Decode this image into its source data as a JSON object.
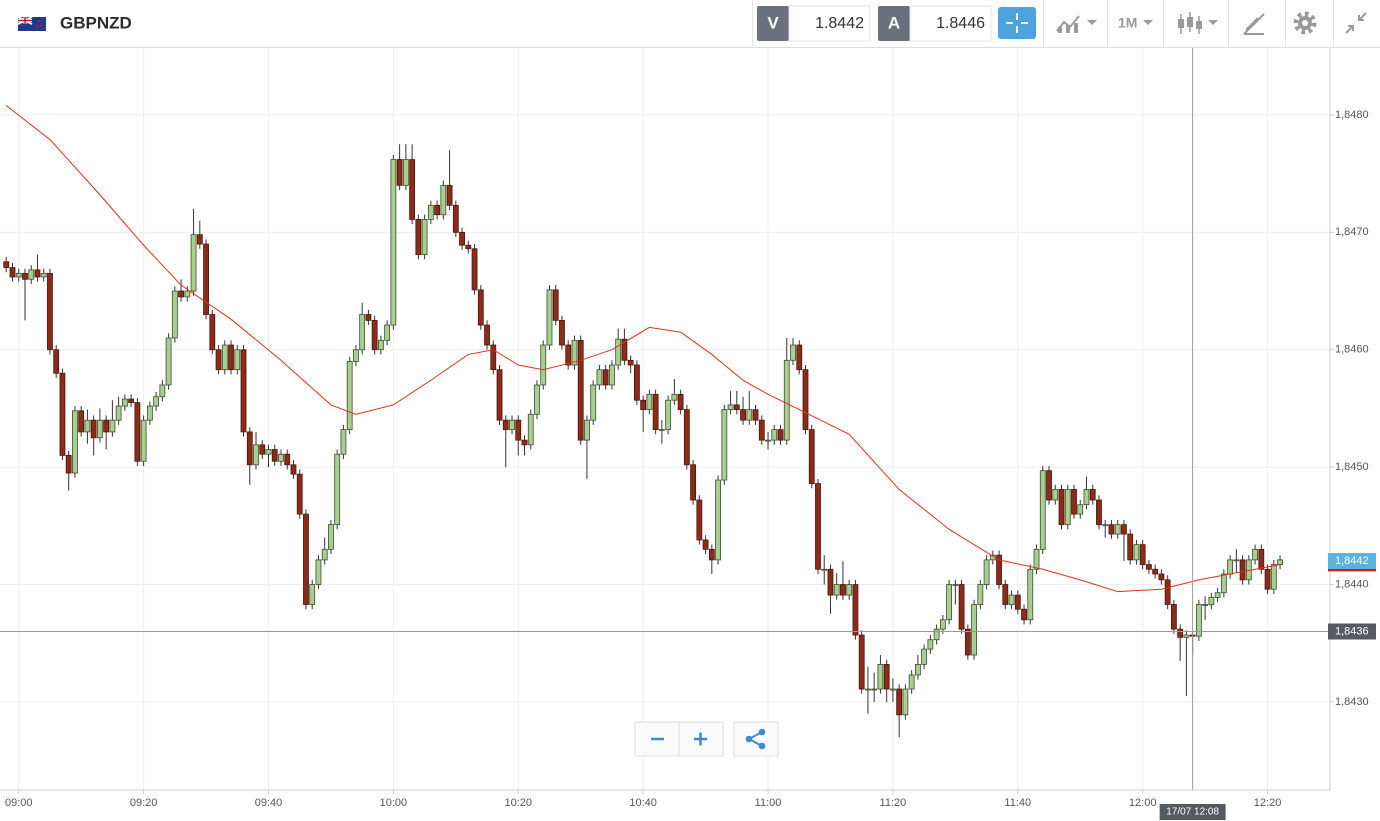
{
  "header": {
    "symbol": "GBPNZD",
    "bid_label": "V",
    "bid": 1.8442,
    "ask_label": "A",
    "ask": 1.8446,
    "timeframe": "1M"
  },
  "chart_data": {
    "type": "candlestick",
    "x": [
      "08:58",
      "08:59",
      "09:00",
      "09:01",
      "09:02",
      "09:03",
      "09:04",
      "09:05",
      "09:06",
      "09:07",
      "09:08",
      "09:09",
      "09:10",
      "09:11",
      "09:12",
      "09:13",
      "09:14",
      "09:15",
      "09:16",
      "09:17",
      "09:18",
      "09:19",
      "09:20",
      "09:21",
      "09:22",
      "09:23",
      "09:24",
      "09:25",
      "09:26",
      "09:27",
      "09:28",
      "09:29",
      "09:30",
      "09:31",
      "09:32",
      "09:33",
      "09:34",
      "09:35",
      "09:36",
      "09:37",
      "09:38",
      "09:39",
      "09:40",
      "09:41",
      "09:42",
      "09:43",
      "09:44",
      "09:45",
      "09:46",
      "09:47",
      "09:48",
      "09:49",
      "09:50",
      "09:51",
      "09:52",
      "09:53",
      "09:54",
      "09:55",
      "09:56",
      "09:57",
      "09:58",
      "09:59",
      "10:00",
      "10:01",
      "10:02",
      "10:03",
      "10:04",
      "10:05",
      "10:06",
      "10:07",
      "10:08",
      "10:09",
      "10:10",
      "10:11",
      "10:12",
      "10:13",
      "10:14",
      "10:15",
      "10:16",
      "10:17",
      "10:18",
      "10:19",
      "10:20",
      "10:21",
      "10:22",
      "10:23",
      "10:24",
      "10:25",
      "10:26",
      "10:27",
      "10:28",
      "10:29",
      "10:30",
      "10:31",
      "10:32",
      "10:33",
      "10:34",
      "10:35",
      "10:36",
      "10:37",
      "10:38",
      "10:39",
      "10:40",
      "10:41",
      "10:42",
      "10:43",
      "10:44",
      "10:45",
      "10:46",
      "10:47",
      "10:48",
      "10:49",
      "10:50",
      "10:51",
      "10:52",
      "10:53",
      "10:54",
      "10:55",
      "10:56",
      "10:57",
      "10:58",
      "10:59",
      "11:00",
      "11:01",
      "11:02",
      "11:03",
      "11:04",
      "11:05",
      "11:06",
      "11:07",
      "11:08",
      "11:09",
      "11:10",
      "11:11",
      "11:12",
      "11:13",
      "11:14",
      "11:15",
      "11:16",
      "11:17",
      "11:18",
      "11:19",
      "11:20",
      "11:21",
      "11:22",
      "11:23",
      "11:24",
      "11:25",
      "11:26",
      "11:27",
      "11:28",
      "11:29",
      "11:30",
      "11:31",
      "11:32",
      "11:33",
      "11:34",
      "11:35",
      "11:36",
      "11:37",
      "11:38",
      "11:39",
      "11:40",
      "11:41",
      "11:42",
      "11:43",
      "11:44",
      "11:45",
      "11:46",
      "11:47",
      "11:48",
      "11:49",
      "11:50",
      "11:51",
      "11:52",
      "11:53",
      "11:54",
      "11:55",
      "11:56",
      "11:57",
      "11:58",
      "11:59",
      "12:00",
      "12:01",
      "12:02",
      "12:03",
      "12:04",
      "12:05",
      "12:06",
      "12:07",
      "12:08",
      "12:09",
      "12:10",
      "12:11",
      "12:12",
      "12:13",
      "12:14",
      "12:15",
      "12:16",
      "12:17",
      "12:18",
      "12:19",
      "12:20",
      "12:21",
      "12:22"
    ],
    "open": [
      1.84675,
      1.8467,
      1.84662,
      1.84665,
      1.8466,
      1.84668,
      1.84662,
      1.84665,
      1.846,
      1.8458,
      1.8451,
      1.84495,
      1.84548,
      1.8453,
      1.8454,
      1.84525,
      1.8454,
      1.8453,
      1.8454,
      1.84552,
      1.84558,
      1.84555,
      1.84505,
      1.8454,
      1.84552,
      1.8456,
      1.8457,
      1.8461,
      1.8465,
      1.84645,
      1.8465,
      1.84698,
      1.8469,
      1.8463,
      1.846,
      1.84583,
      1.84604,
      1.84583,
      1.846,
      1.8453,
      1.84502,
      1.84519,
      1.84511,
      1.84515,
      1.84505,
      1.84511,
      1.84502,
      1.84494,
      1.8446,
      1.84383,
      1.844,
      1.84421,
      1.8443,
      1.84451,
      1.84511,
      1.84532,
      1.8459,
      1.846,
      1.8463,
      1.84625,
      1.846,
      1.84608,
      1.84621,
      1.84762,
      1.8474,
      1.84762,
      1.84711,
      1.84681,
      1.84711,
      1.84723,
      1.84715,
      1.8474,
      1.84723,
      1.847,
      1.84689,
      1.84686,
      1.84651,
      1.84621,
      1.84604,
      1.84583,
      1.8454,
      1.84532,
      1.8454,
      1.84523,
      1.84519,
      1.84545,
      1.8457,
      1.84604,
      1.84651,
      1.84625,
      1.84604,
      1.84587,
      1.84608,
      1.84523,
      1.8454,
      1.8457,
      1.84583,
      1.8457,
      1.84587,
      1.84609,
      1.84591,
      1.84587,
      1.84557,
      1.84549,
      1.84562,
      1.84532,
      1.84532,
      1.84557,
      1.84562,
      1.84549,
      1.84502,
      1.84472,
      1.84438,
      1.8443,
      1.84421,
      1.84489,
      1.84549,
      1.84553,
      1.84549,
      1.8454,
      1.84549,
      1.8454,
      1.84523,
      1.84523,
      1.84532,
      1.84523,
      1.84591,
      1.84604,
      1.84583,
      1.84532,
      1.84486,
      1.84413,
      1.84413,
      1.84391,
      1.844,
      1.84391,
      1.844,
      1.84357,
      1.84311,
      1.84311,
      1.84311,
      1.84332,
      1.84311,
      1.84311,
      1.84289,
      1.84311,
      1.84323,
      1.84332,
      1.84345,
      1.84353,
      1.84362,
      1.8437,
      1.844,
      1.844,
      1.84362,
      1.8434,
      1.84383,
      1.844,
      1.84421,
      1.84425,
      1.844,
      1.84383,
      1.84391,
      1.84379,
      1.8437,
      1.84413,
      1.8443,
      1.84497,
      1.84472,
      1.84481,
      1.84451,
      1.84481,
      1.8446,
      1.84468,
      1.84481,
      1.84472,
      1.84451,
      1.84451,
      1.84443,
      1.84451,
      1.84443,
      1.84421,
      1.84434,
      1.84417,
      1.84413,
      1.84409,
      1.84404,
      1.84383,
      1.84362,
      1.84355,
      1.84357,
      1.84356,
      1.84383,
      1.84383,
      1.84389,
      1.84393,
      1.84409,
      1.84421,
      1.84421,
      1.84404,
      1.84421,
      1.8443,
      1.84413,
      1.84396,
      1.84417
    ],
    "high": [
      1.84679,
      1.84674,
      1.84669,
      1.84669,
      1.84672,
      1.84681,
      1.84669,
      1.84669,
      1.84604,
      1.84584,
      1.84514,
      1.84552,
      1.84552,
      1.84549,
      1.84544,
      1.8455,
      1.84544,
      1.84557,
      1.8456,
      1.84562,
      1.84562,
      1.84559,
      1.84544,
      1.84556,
      1.84564,
      1.84574,
      1.84614,
      1.84654,
      1.8466,
      1.84654,
      1.8472,
      1.8471,
      1.84694,
      1.84634,
      1.84604,
      1.84608,
      1.84608,
      1.84604,
      1.84604,
      1.84534,
      1.8453,
      1.84523,
      1.84519,
      1.84519,
      1.84515,
      1.84515,
      1.84506,
      1.84498,
      1.84464,
      1.84404,
      1.84425,
      1.8444,
      1.84455,
      1.84515,
      1.84536,
      1.84594,
      1.84604,
      1.8464,
      1.84634,
      1.84629,
      1.84612,
      1.84625,
      1.84766,
      1.84775,
      1.84775,
      1.84775,
      1.84715,
      1.84715,
      1.84727,
      1.84727,
      1.84744,
      1.8477,
      1.84727,
      1.84704,
      1.84693,
      1.8469,
      1.84655,
      1.84625,
      1.84608,
      1.84587,
      1.84544,
      1.84544,
      1.84544,
      1.84527,
      1.84549,
      1.84574,
      1.84608,
      1.84655,
      1.84655,
      1.84629,
      1.84608,
      1.84612,
      1.84612,
      1.84544,
      1.84574,
      1.84587,
      1.84587,
      1.84591,
      1.84618,
      1.84618,
      1.84595,
      1.84591,
      1.84561,
      1.84566,
      1.84566,
      1.8454,
      1.84561,
      1.84575,
      1.84566,
      1.84553,
      1.84506,
      1.84476,
      1.84442,
      1.84434,
      1.84493,
      1.84553,
      1.84565,
      1.84565,
      1.8456,
      1.84565,
      1.84553,
      1.84544,
      1.8453,
      1.84536,
      1.84536,
      1.8461,
      1.8461,
      1.84608,
      1.84587,
      1.84536,
      1.8449,
      1.84425,
      1.84417,
      1.8441,
      1.8442,
      1.84404,
      1.84404,
      1.84361,
      1.8433,
      1.84325,
      1.8434,
      1.84336,
      1.8432,
      1.84315,
      1.84315,
      1.84327,
      1.8434,
      1.84349,
      1.84357,
      1.84366,
      1.84374,
      1.84404,
      1.84404,
      1.84404,
      1.84366,
      1.84387,
      1.84404,
      1.84425,
      1.84429,
      1.84429,
      1.84404,
      1.84395,
      1.84395,
      1.84383,
      1.84417,
      1.84434,
      1.84501,
      1.84501,
      1.84485,
      1.84485,
      1.84485,
      1.84485,
      1.84472,
      1.84492,
      1.84485,
      1.84476,
      1.84455,
      1.84455,
      1.84455,
      1.84455,
      1.84447,
      1.84438,
      1.84438,
      1.84421,
      1.84417,
      1.84413,
      1.84408,
      1.84387,
      1.84366,
      1.84361,
      1.84361,
      1.84387,
      1.8439,
      1.84393,
      1.84397,
      1.84413,
      1.84425,
      1.8443,
      1.84425,
      1.84425,
      1.84434,
      1.84434,
      1.84417,
      1.84421,
      1.84425
    ],
    "low": [
      1.84666,
      1.84658,
      1.84658,
      1.84625,
      1.84656,
      1.84658,
      1.84658,
      1.84596,
      1.84576,
      1.84506,
      1.8448,
      1.84491,
      1.84526,
      1.8452,
      1.8451,
      1.84521,
      1.84515,
      1.84526,
      1.84536,
      1.84548,
      1.84551,
      1.84501,
      1.84501,
      1.84536,
      1.84548,
      1.84556,
      1.84566,
      1.84606,
      1.84641,
      1.84641,
      1.84646,
      1.84686,
      1.84626,
      1.84596,
      1.84579,
      1.84579,
      1.84579,
      1.84579,
      1.84526,
      1.84485,
      1.84498,
      1.84507,
      1.845,
      1.84501,
      1.84501,
      1.84498,
      1.8449,
      1.84456,
      1.84379,
      1.84379,
      1.84396,
      1.84417,
      1.84426,
      1.84447,
      1.84507,
      1.84528,
      1.84586,
      1.84596,
      1.84621,
      1.84596,
      1.84596,
      1.84604,
      1.84617,
      1.84736,
      1.84736,
      1.84707,
      1.84677,
      1.84677,
      1.84707,
      1.84711,
      1.84711,
      1.84719,
      1.84696,
      1.84685,
      1.84682,
      1.84647,
      1.84617,
      1.846,
      1.84579,
      1.84536,
      1.845,
      1.84528,
      1.8451,
      1.8451,
      1.84515,
      1.84541,
      1.84566,
      1.846,
      1.84621,
      1.846,
      1.84583,
      1.84583,
      1.84519,
      1.8449,
      1.84536,
      1.84566,
      1.84566,
      1.84566,
      1.84583,
      1.84587,
      1.8458,
      1.84553,
      1.8453,
      1.84545,
      1.84528,
      1.8452,
      1.84528,
      1.84553,
      1.84545,
      1.84498,
      1.84468,
      1.84434,
      1.84426,
      1.84409,
      1.84417,
      1.84485,
      1.84545,
      1.84545,
      1.84536,
      1.84536,
      1.84536,
      1.84519,
      1.84515,
      1.84519,
      1.84519,
      1.84519,
      1.84587,
      1.84579,
      1.84528,
      1.84482,
      1.84409,
      1.844,
      1.84375,
      1.84387,
      1.84387,
      1.84387,
      1.84353,
      1.84307,
      1.8429,
      1.843,
      1.84307,
      1.843,
      1.843,
      1.8427,
      1.84285,
      1.84307,
      1.84319,
      1.84328,
      1.84341,
      1.84349,
      1.84358,
      1.84366,
      1.84383,
      1.84358,
      1.84336,
      1.84336,
      1.84379,
      1.84396,
      1.84417,
      1.84396,
      1.84379,
      1.84379,
      1.84375,
      1.84366,
      1.84366,
      1.84409,
      1.84426,
      1.84468,
      1.84468,
      1.84447,
      1.84447,
      1.84456,
      1.84456,
      1.84464,
      1.84468,
      1.84447,
      1.8444,
      1.84439,
      1.84439,
      1.8442,
      1.84417,
      1.84417,
      1.84413,
      1.84409,
      1.84405,
      1.844,
      1.84379,
      1.84358,
      1.84335,
      1.84305,
      1.8434,
      1.84352,
      1.8437,
      1.84379,
      1.84385,
      1.84389,
      1.84405,
      1.8441,
      1.844,
      1.844,
      1.84417,
      1.84409,
      1.84392,
      1.84392,
      1.84413
    ],
    "close": [
      1.8467,
      1.84662,
      1.84665,
      1.8466,
      1.84668,
      1.84662,
      1.84665,
      1.846,
      1.8458,
      1.8451,
      1.84495,
      1.84548,
      1.8453,
      1.8454,
      1.84525,
      1.8454,
      1.8453,
      1.8454,
      1.84552,
      1.84558,
      1.84555,
      1.84505,
      1.8454,
      1.84552,
      1.8456,
      1.8457,
      1.8461,
      1.8465,
      1.84645,
      1.8465,
      1.84698,
      1.8469,
      1.8463,
      1.846,
      1.84583,
      1.84604,
      1.84583,
      1.846,
      1.8453,
      1.84502,
      1.84519,
      1.84511,
      1.84515,
      1.84505,
      1.84511,
      1.84502,
      1.84494,
      1.8446,
      1.84383,
      1.844,
      1.84421,
      1.8443,
      1.84451,
      1.84511,
      1.84532,
      1.8459,
      1.846,
      1.8463,
      1.84625,
      1.846,
      1.84608,
      1.84621,
      1.84762,
      1.8474,
      1.84762,
      1.84711,
      1.84681,
      1.84711,
      1.84723,
      1.84715,
      1.8474,
      1.84723,
      1.847,
      1.84689,
      1.84686,
      1.84651,
      1.84621,
      1.84604,
      1.84583,
      1.8454,
      1.84532,
      1.8454,
      1.84523,
      1.84519,
      1.84545,
      1.8457,
      1.84604,
      1.84651,
      1.84625,
      1.84604,
      1.84587,
      1.84608,
      1.84523,
      1.8454,
      1.8457,
      1.84583,
      1.8457,
      1.84587,
      1.84609,
      1.84591,
      1.84587,
      1.84557,
      1.84549,
      1.84562,
      1.84532,
      1.84532,
      1.84557,
      1.84562,
      1.84549,
      1.84502,
      1.84472,
      1.84438,
      1.8443,
      1.84421,
      1.84489,
      1.84549,
      1.84553,
      1.84549,
      1.8454,
      1.84549,
      1.8454,
      1.84523,
      1.84523,
      1.84532,
      1.84523,
      1.84591,
      1.84604,
      1.84583,
      1.84532,
      1.84486,
      1.84413,
      1.84413,
      1.84391,
      1.844,
      1.84391,
      1.844,
      1.84357,
      1.84311,
      1.84311,
      1.84311,
      1.84332,
      1.84311,
      1.84311,
      1.84289,
      1.84311,
      1.84323,
      1.84332,
      1.84345,
      1.84353,
      1.84362,
      1.8437,
      1.844,
      1.844,
      1.84362,
      1.8434,
      1.84383,
      1.844,
      1.84421,
      1.84425,
      1.844,
      1.84383,
      1.84391,
      1.84379,
      1.8437,
      1.84413,
      1.8443,
      1.84497,
      1.84472,
      1.84481,
      1.84451,
      1.84481,
      1.8446,
      1.84468,
      1.84481,
      1.84472,
      1.84451,
      1.84451,
      1.84443,
      1.84451,
      1.84443,
      1.84421,
      1.84434,
      1.84417,
      1.84413,
      1.84409,
      1.84404,
      1.84383,
      1.84362,
      1.84355,
      1.84357,
      1.84356,
      1.84383,
      1.84383,
      1.84389,
      1.84393,
      1.84409,
      1.84421,
      1.84421,
      1.84404,
      1.84421,
      1.8443,
      1.84413,
      1.84396,
      1.84417,
      1.84421
    ],
    "up_color": "#a9cf8f",
    "down_color": "#8b2c1b",
    "overlay": {
      "color": "#e0301e",
      "x": [
        "08:58",
        "09:05",
        "09:13",
        "09:20",
        "09:26",
        "09:34",
        "09:42",
        "09:50",
        "09:54",
        "10:00",
        "10:06",
        "10:12",
        "10:16",
        "10:20",
        "10:24",
        "10:30",
        "10:35",
        "10:41",
        "10:46",
        "10:51",
        "10:56",
        "11:00",
        "11:05",
        "11:13",
        "11:21",
        "11:29",
        "11:37",
        "11:44",
        "11:50",
        "11:56",
        "12:03",
        "12:09",
        "12:16",
        "12:22"
      ],
      "values": [
        1.84808,
        1.84779,
        1.84732,
        1.84689,
        1.84655,
        1.84626,
        1.84591,
        1.84553,
        1.84545,
        1.84553,
        1.84574,
        1.84596,
        1.846,
        1.84587,
        1.84583,
        1.84591,
        1.846,
        1.84619,
        1.84615,
        1.84596,
        1.84574,
        1.84562,
        1.84549,
        1.84528,
        1.84481,
        1.84447,
        1.84421,
        1.84413,
        1.84404,
        1.84394,
        1.84396,
        1.84404,
        1.84411,
        1.84417
      ]
    },
    "xlim": [
      "08:57",
      "12:30"
    ],
    "xticks": [
      "09:00",
      "09:20",
      "09:40",
      "10:00",
      "10:20",
      "10:40",
      "11:00",
      "11:20",
      "11:40",
      "12:00",
      "12:20"
    ],
    "ylim": [
      1.84225,
      1.84857
    ],
    "yticks": [
      {
        "value": 1.843,
        "label": "1,8430"
      },
      {
        "value": 1.844,
        "label": "1,8440"
      },
      {
        "value": 1.845,
        "label": "1,8450"
      },
      {
        "value": 1.846,
        "label": "1,8460"
      },
      {
        "value": 1.847,
        "label": "1,8470"
      },
      {
        "value": 1.848,
        "label": "1,8480"
      }
    ],
    "grid": true,
    "last_price": {
      "value": 1.8442,
      "label": "1,8442"
    },
    "bid_line": 1.84413,
    "crosshair": {
      "x": "12:08",
      "time_label": "17/07 12:08",
      "price": {
        "value": 1.8436,
        "label": "1,8436"
      }
    }
  }
}
